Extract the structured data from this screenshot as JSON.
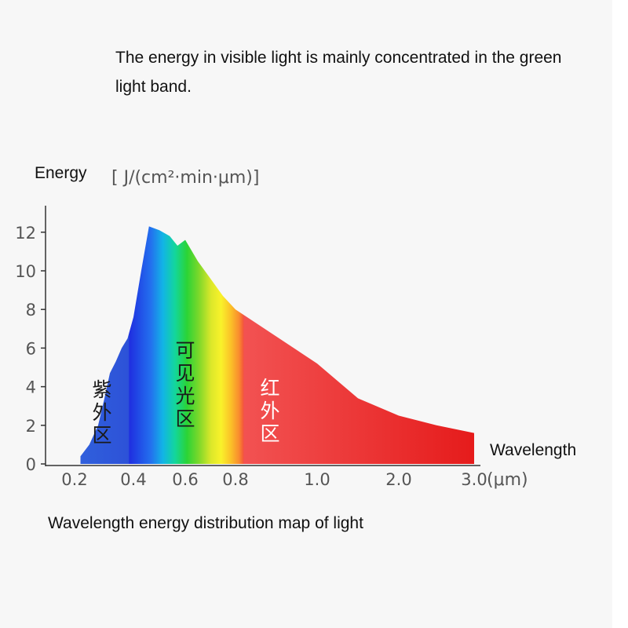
{
  "caption": "The energy in visible light is mainly concentrated in the green light band.",
  "footer": "Wavelength energy distribution map of light",
  "chart_data": {
    "type": "area",
    "y_axis": {
      "label": "Energy",
      "unit": "[ J/(cm²·min·μm)]",
      "ticks": [
        0,
        2,
        4,
        6,
        8,
        10,
        12
      ],
      "ylim": [
        0,
        13
      ]
    },
    "x_axis": {
      "label": "Wavelength",
      "unit": "(μm)",
      "ticks": [
        "0.2",
        "0.4",
        "0.6",
        "0.8",
        "1.0",
        "2.0",
        "3.0"
      ]
    },
    "regions": [
      {
        "name": "紫外区",
        "range": [
          "0.2",
          "0.4"
        ]
      },
      {
        "name": "可见光区",
        "range": [
          "0.4",
          "0.8"
        ]
      },
      {
        "name": "红外区",
        "range": [
          "0.8",
          "3.0"
        ]
      }
    ],
    "curve": [
      {
        "x": 0.22,
        "y": 0.4
      },
      {
        "x": 0.25,
        "y": 1.0
      },
      {
        "x": 0.28,
        "y": 2.0
      },
      {
        "x": 0.3,
        "y": 3.3
      },
      {
        "x": 0.32,
        "y": 4.7
      },
      {
        "x": 0.34,
        "y": 5.3
      },
      {
        "x": 0.36,
        "y": 6.0
      },
      {
        "x": 0.38,
        "y": 6.5
      },
      {
        "x": 0.4,
        "y": 7.6
      },
      {
        "x": 0.43,
        "y": 10.0
      },
      {
        "x": 0.46,
        "y": 12.3
      },
      {
        "x": 0.5,
        "y": 12.1
      },
      {
        "x": 0.54,
        "y": 11.8
      },
      {
        "x": 0.57,
        "y": 11.3
      },
      {
        "x": 0.6,
        "y": 11.6
      },
      {
        "x": 0.65,
        "y": 10.5
      },
      {
        "x": 0.7,
        "y": 9.6
      },
      {
        "x": 0.75,
        "y": 8.7
      },
      {
        "x": 0.8,
        "y": 8.0
      },
      {
        "x": 1.0,
        "y": 5.2
      },
      {
        "x": 1.5,
        "y": 3.4
      },
      {
        "x": 2.0,
        "y": 2.5
      },
      {
        "x": 2.5,
        "y": 2.0
      },
      {
        "x": 3.0,
        "y": 1.6
      }
    ],
    "colors": {
      "uv": "#2a5bd7",
      "infrared": "#f03a3a",
      "axis": "#333333"
    }
  }
}
